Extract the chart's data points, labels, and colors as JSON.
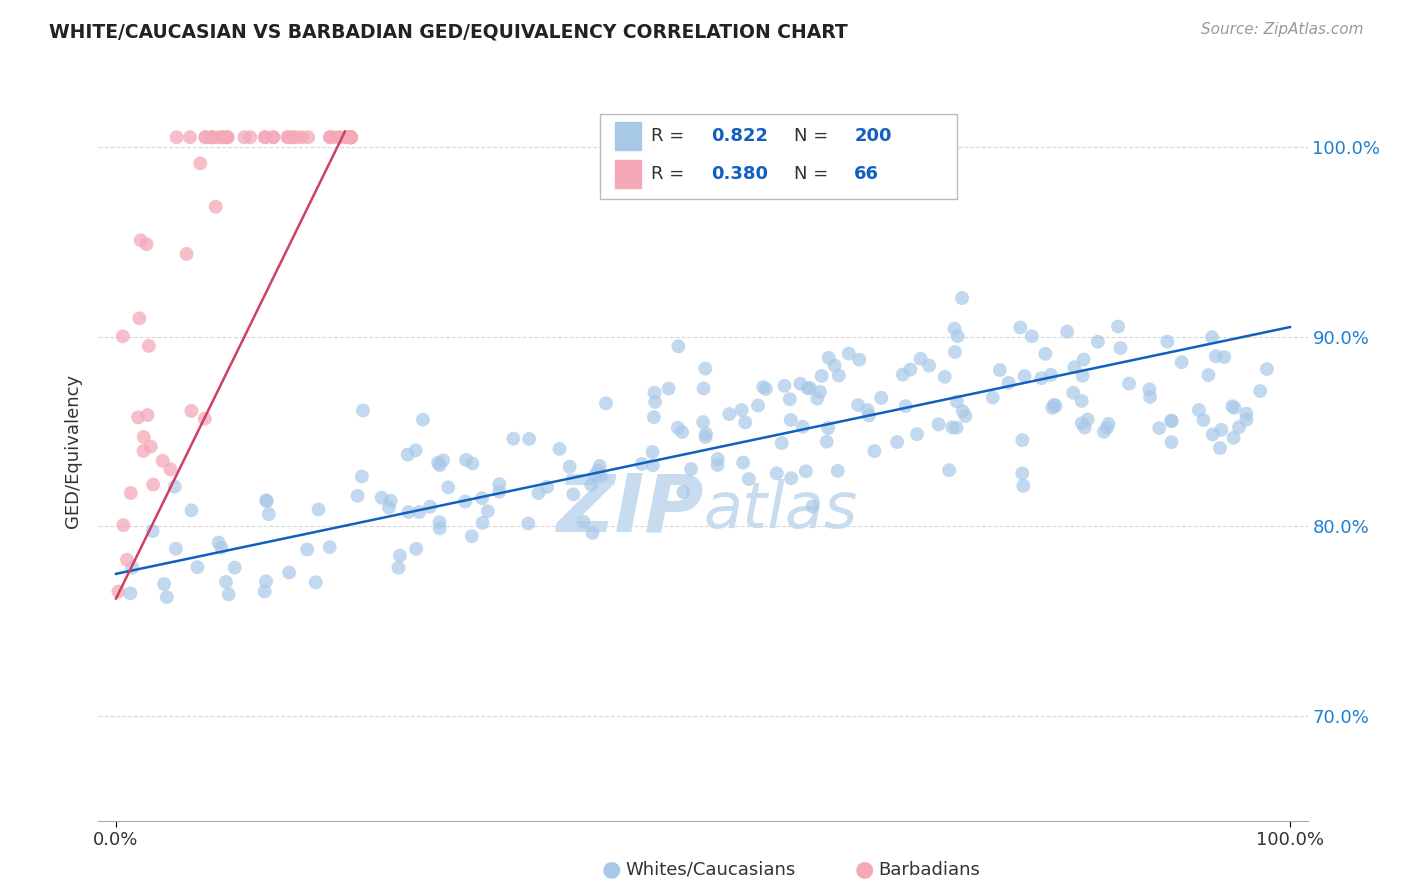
{
  "title": "WHITE/CAUCASIAN VS BARBADIAN GED/EQUIVALENCY CORRELATION CHART",
  "source": "Source: ZipAtlas.com",
  "ylabel": "GED/Equivalency",
  "legend": {
    "blue_R": "0.822",
    "blue_N": "200",
    "pink_R": "0.380",
    "pink_N": "66"
  },
  "yticks": [
    0.7,
    0.8,
    0.9,
    1.0
  ],
  "ytick_labels": [
    "70.0%",
    "80.0%",
    "90.0%",
    "100.0%"
  ],
  "blue_color": "#A8C8E8",
  "pink_color": "#F4A8B8",
  "blue_line_color": "#1060C0",
  "pink_line_color": "#D04060",
  "legend_R_N_color": "#1060C0",
  "grid_color": "#D8D8D8",
  "background_color": "#FFFFFF",
  "title_color": "#222222",
  "source_color": "#999999",
  "right_label_color": "#2080D0",
  "watermark_color": "#C8DCF0"
}
